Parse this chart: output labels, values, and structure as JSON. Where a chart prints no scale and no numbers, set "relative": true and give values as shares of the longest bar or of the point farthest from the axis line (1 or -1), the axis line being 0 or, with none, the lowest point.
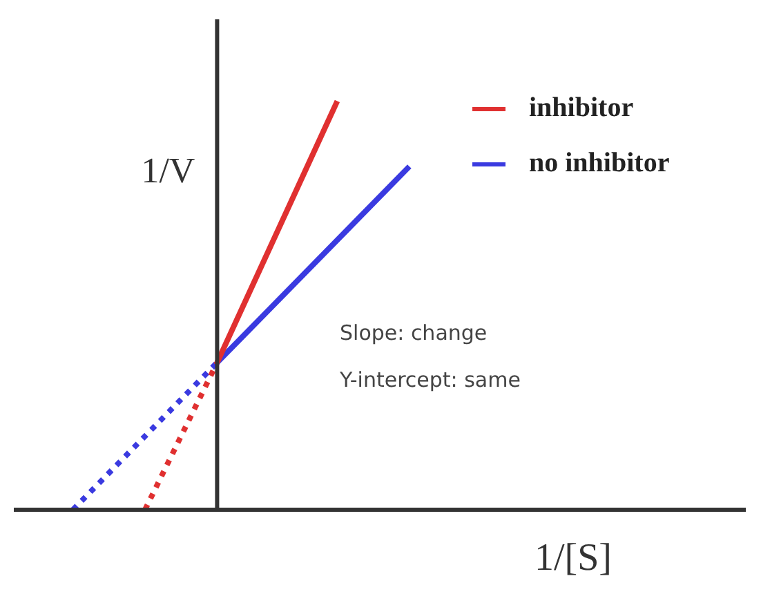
{
  "chart_data": {
    "type": "line",
    "relative": true,
    "xlabel": "1/[S]",
    "ylabel": "1/V",
    "legend": "top right",
    "marker": "none",
    "categories": [
      null,
      null,
      null,
      null,
      null,
      null,
      null,
      null,
      null,
      null,
      null,
      null,
      null,
      null,
      null,
      null,
      null,
      null,
      null,
      null,
      null,
      null,
      null,
      null,
      null,
      null,
      null,
      null,
      null,
      null,
      null
    ],
    "series": [
      {
        "name": "inhibitor",
        "color": "#e03030",
        "values": [
          null,
          null,
          null,
          null,
          null,
          null,
          null,
          null,
          0.36,
          null,
          null,
          null,
          null,
          1,
          null,
          null,
          null,
          null,
          null,
          null,
          null,
          null,
          null,
          null,
          null,
          null,
          null,
          null,
          null,
          null,
          null
        ],
        "line_style": "solid"
      },
      {
        "name": "no inhibitor",
        "color": "#3a3ae0",
        "values": [
          null,
          null,
          null,
          null,
          null,
          null,
          null,
          null,
          0.36,
          null,
          null,
          null,
          null,
          null,
          null,
          null,
          0.84,
          null,
          null,
          null,
          null,
          null,
          null,
          null,
          null,
          null,
          null,
          null,
          null,
          null,
          null
        ],
        "line_style": "solid"
      },
      {
        "color": "#e03030",
        "values": [
          null,
          null,
          null,
          null,
          null,
          0,
          null,
          null,
          0.36,
          null,
          null,
          null,
          null,
          null,
          null,
          null,
          null,
          null,
          null,
          null,
          null,
          null,
          null,
          null,
          null,
          null,
          null,
          null,
          null,
          null,
          null
        ],
        "line_style": "dotted"
      },
      {
        "color": "#3a3ae0",
        "values": [
          null,
          null,
          0,
          null,
          null,
          null,
          null,
          null,
          0.36,
          null,
          null,
          null,
          null,
          null,
          null,
          null,
          null,
          null,
          null,
          null,
          null,
          null,
          null,
          null,
          null,
          null,
          null,
          null,
          null,
          null,
          null
        ],
        "line_style": "dotted"
      }
    ],
    "annotations": [
      "Slope: change",
      "Y-intercept: same"
    ]
  }
}
